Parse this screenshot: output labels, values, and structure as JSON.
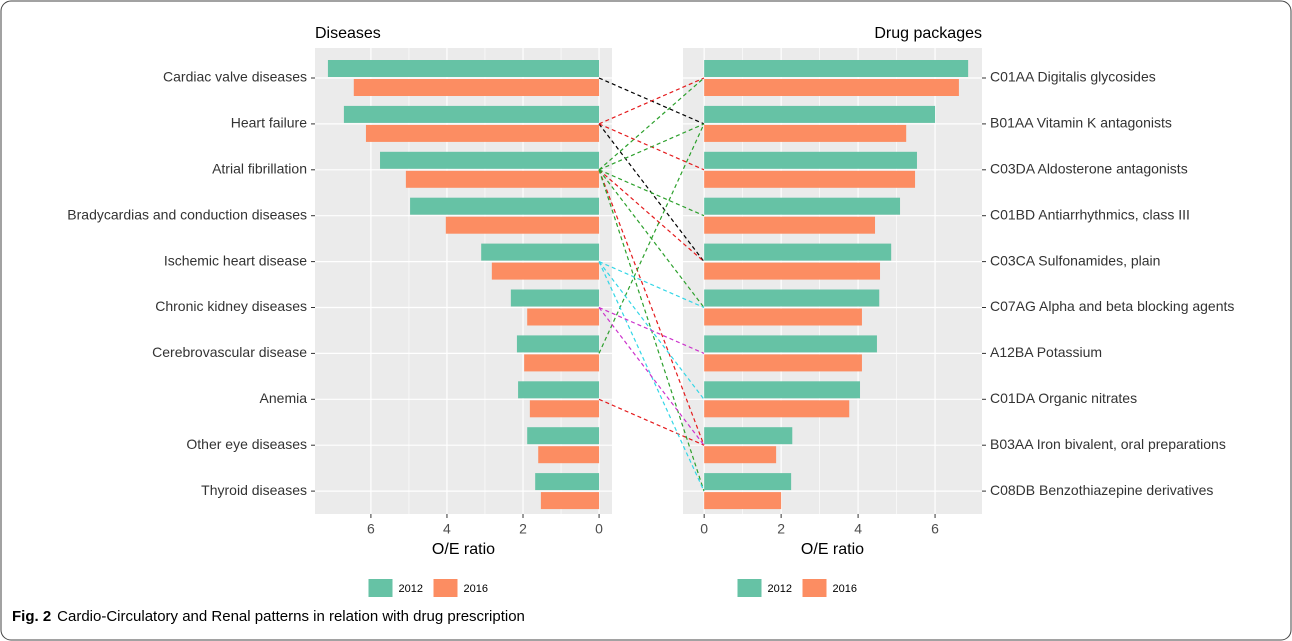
{
  "chart_data": [
    {
      "type": "hbar",
      "title": "Diseases",
      "x_label": "O/E ratio",
      "category_axis": "left",
      "categories": [
        "Cardiac valve diseases",
        "Heart failure",
        "Atrial fibrillation",
        "Bradycardias and conduction diseases",
        "Ischemic heart disease",
        "Chronic kidney diseases",
        "Cerebrovascular disease",
        "Anemia",
        "Other eye diseases",
        "Thyroid diseases"
      ],
      "series": [
        {
          "name": "2012",
          "color": "#66c2a5",
          "values": [
            7.13,
            6.71,
            5.76,
            4.97,
            3.1,
            2.32,
            2.16,
            2.13,
            1.89,
            1.68
          ]
        },
        {
          "name": "2016",
          "color": "#fc8d62",
          "values": [
            6.45,
            6.13,
            5.08,
            4.03,
            2.82,
            1.89,
            1.97,
            1.82,
            1.6,
            1.53
          ]
        }
      ],
      "xlim": [
        7.47,
        -0.34
      ],
      "xticks": [
        6,
        4,
        2,
        0
      ],
      "grid": true
    },
    {
      "type": "hbar",
      "title": "Drug packages",
      "x_label": "O/E ratio",
      "category_axis": "right",
      "categories": [
        "C01AA Digitalis glycosides",
        "B01AA Vitamin K antagonists",
        "C03DA Aldosterone antagonists",
        "C01BD Antiarrhythmics, class III",
        "C03CA Sulfonamides, plain",
        "C07AG Alpha and beta blocking agents",
        "A12BA Potassium",
        "C01DA Organic nitrates",
        "B03AA Iron bivalent, oral preparations",
        "C08DB Benzothiazepine derivatives"
      ],
      "series": [
        {
          "name": "2012",
          "color": "#66c2a5",
          "values": [
            6.86,
            6.0,
            5.53,
            5.09,
            4.86,
            4.55,
            4.49,
            4.05,
            2.29,
            2.26
          ]
        },
        {
          "name": "2016",
          "color": "#fc8d62",
          "values": [
            6.62,
            5.25,
            5.48,
            4.44,
            4.57,
            4.1,
            4.1,
            3.77,
            1.87,
            2.0
          ]
        }
      ],
      "xlim": [
        -0.55,
        7.22
      ],
      "xticks": [
        0,
        2,
        4,
        6
      ],
      "grid": true
    }
  ],
  "caption": {
    "label": "Fig. 2",
    "text": "Cardio-Circulatory and Renal patterns in relation with drug prescription"
  }
}
